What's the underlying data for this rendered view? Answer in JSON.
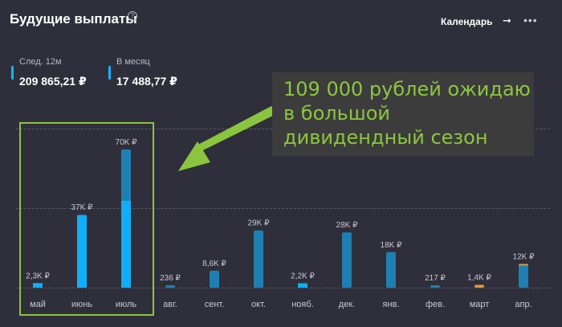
{
  "header": {
    "title": "Будущие выплаты",
    "help_glyph": "?",
    "calendar_label": "Календарь",
    "calendar_arrow": "➞",
    "more_glyph": "•••"
  },
  "stats": [
    {
      "label": "След. 12м",
      "value": "209 865,21 ₽"
    },
    {
      "label": "В месяц",
      "value": "17 488,77 ₽"
    }
  ],
  "callout": {
    "text_line_1": "109 000 рублей ожидаю",
    "text_line_2": "в большой",
    "text_line_3": "дивидендный сезон"
  },
  "colors": {
    "bar_blue": "#11aef7",
    "bar_dark": "#1f7fb2",
    "bar_orange": "#e6963a",
    "accent_green": "#8bc53f"
  },
  "chart_data": {
    "type": "bar",
    "categories": [
      "май",
      "июнь",
      "июль",
      "авг.",
      "сент.",
      "окт.",
      "нояб.",
      "дек.",
      "янв.",
      "фев.",
      "март",
      "апр."
    ],
    "value_labels": [
      "2,3K ₽",
      "37K ₽",
      "70K ₽",
      "236 ₽",
      "8,6K ₽",
      "29K ₽",
      "2,2K ₽",
      "28K ₽",
      "18K ₽",
      "217 ₽",
      "1,4K ₽",
      "12K ₽"
    ],
    "values": [
      2300,
      37000,
      70000,
      236,
      8600,
      29000,
      2200,
      28000,
      18000,
      217,
      1400,
      12000
    ],
    "confirmed": [
      2300,
      36500,
      44000,
      0,
      0,
      0,
      2200,
      0,
      0,
      0,
      0,
      0
    ],
    "accent": [
      0,
      0,
      0,
      0,
      0,
      0,
      0,
      0,
      0,
      0,
      1400,
      400
    ],
    "ylim": [
      0,
      70000
    ],
    "grid": true
  }
}
